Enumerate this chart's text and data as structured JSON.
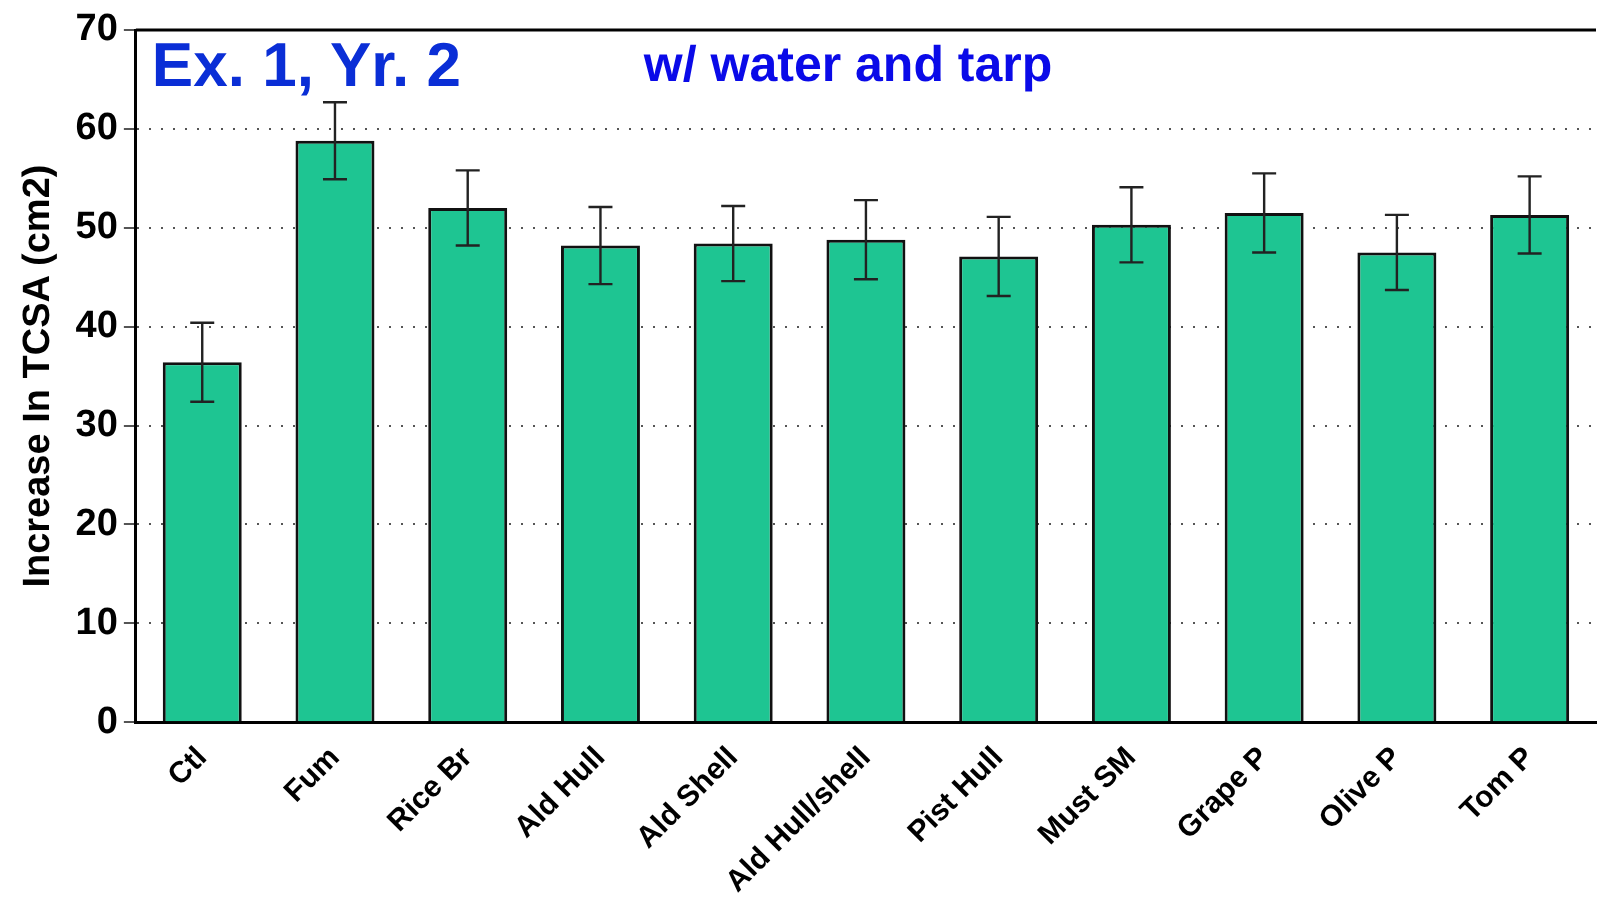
{
  "chart_data": {
    "type": "bar",
    "title": "Ex. 1, Yr. 2",
    "subtitle": "w/ water and tarp",
    "ylabel": "Increase In TCSA (cm2)",
    "categories": [
      "Ctl",
      "Fum",
      "Rice Br",
      "Ald Hull",
      "Ald Shell",
      "Ald Hull/shell",
      "Pist Hull",
      "Must SM",
      "Grape P",
      "Olive P",
      "Tom P"
    ],
    "values": [
      36.4,
      58.8,
      52.0,
      48.2,
      48.4,
      48.8,
      47.1,
      50.3,
      51.5,
      47.5,
      51.3
    ],
    "errors": [
      4.0,
      3.9,
      3.8,
      3.9,
      3.8,
      4.0,
      4.0,
      3.8,
      4.0,
      3.8,
      3.9
    ],
    "color": "#1ec592",
    "ylim": [
      0,
      70
    ],
    "yticks": [
      0,
      10,
      20,
      30,
      40,
      50,
      60,
      70
    ],
    "grid": "y",
    "legend": false
  }
}
